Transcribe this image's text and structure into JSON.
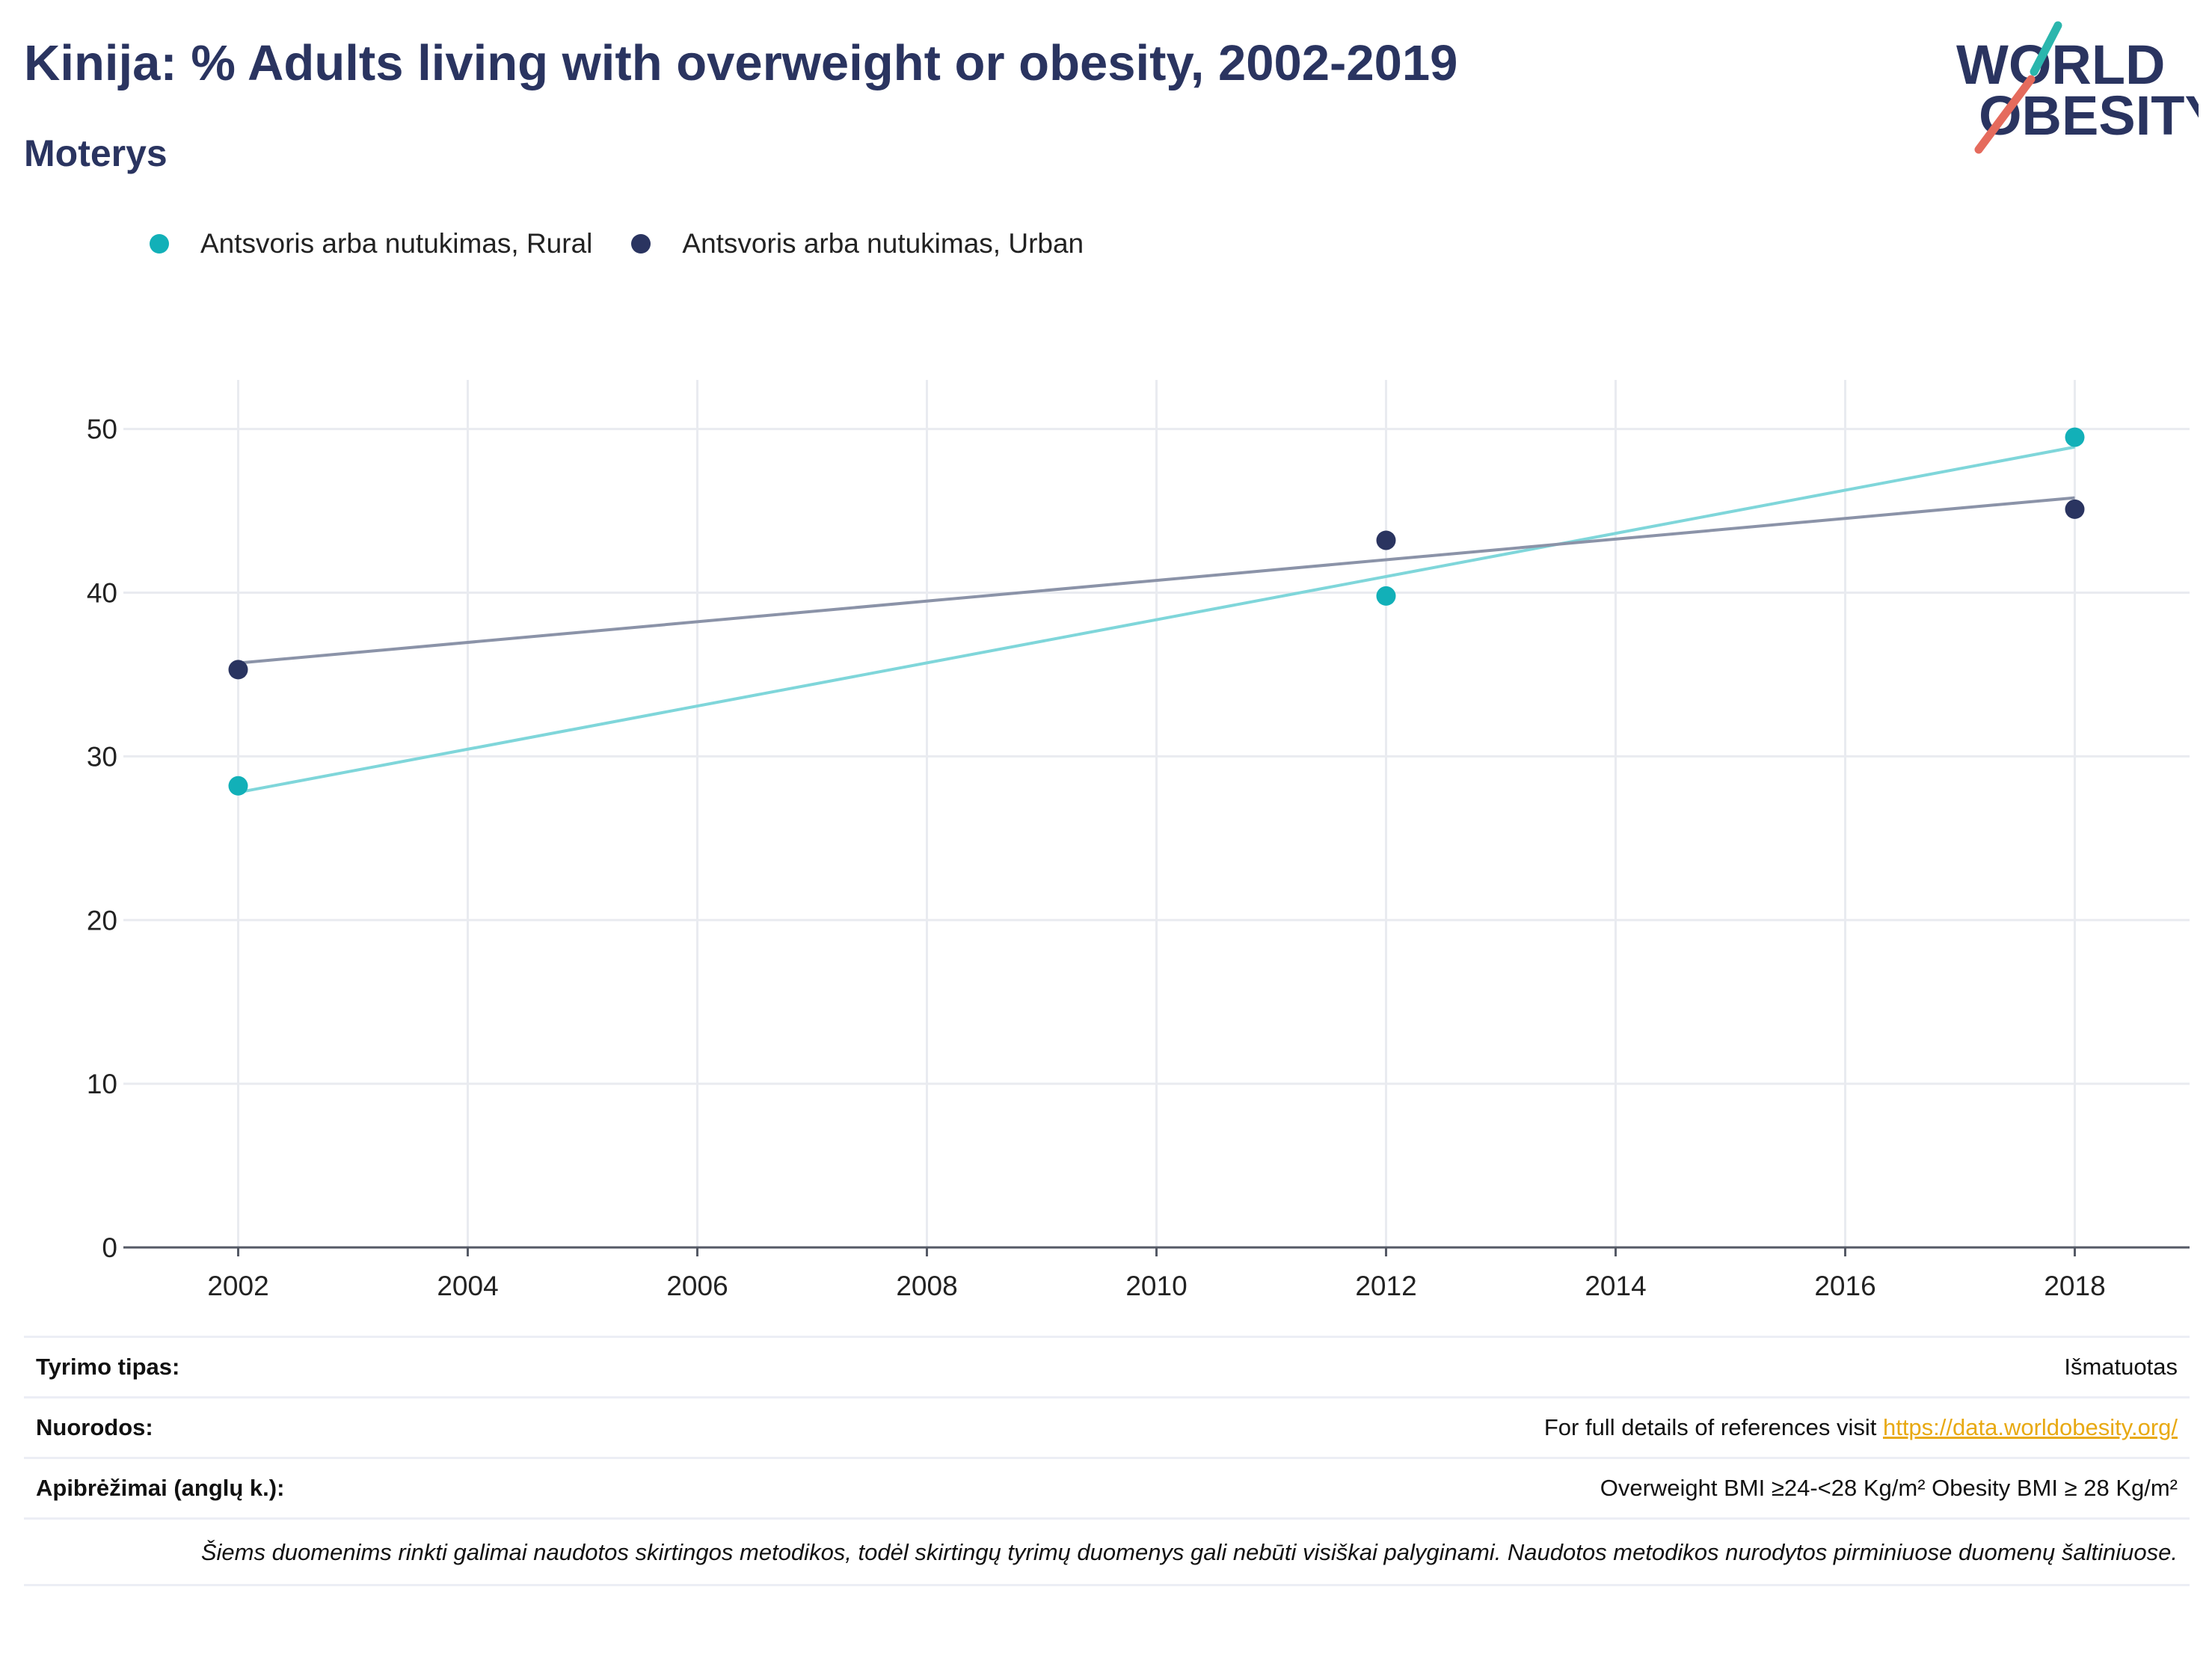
{
  "header": {
    "title": "Kinija: % Adults living with overweight or obesity, 2002-2019",
    "subtitle": "Moterys"
  },
  "logo": {
    "line1": "WORLD",
    "line2": "OBESITY",
    "colors": {
      "text": "#2a3460",
      "slash_top": "#2bb6ad",
      "slash_bottom": "#e56b5d"
    }
  },
  "legend": [
    {
      "label": "Antsvoris arba nutukimas, Rural",
      "color": "#12b0b8"
    },
    {
      "label": "Antsvoris arba nutukimas, Urban",
      "color": "#2a3460"
    }
  ],
  "chart_data": {
    "type": "scatter",
    "title": "Kinija: % Adults living with overweight or obesity, 2002-2019",
    "xlim": [
      2001,
      2019
    ],
    "ylim": [
      0,
      53
    ],
    "x_ticks": [
      2002,
      2004,
      2006,
      2008,
      2010,
      2012,
      2014,
      2016,
      2018
    ],
    "y_ticks": [
      0,
      10,
      20,
      30,
      40,
      50
    ],
    "grid": true,
    "legend_position": "top-left",
    "series": [
      {
        "name": "Antsvoris arba nutukimas, Rural",
        "color": "#12b0b8",
        "trend_color": "#7fd6da",
        "points": [
          {
            "x": 2002,
            "y": 28.2
          },
          {
            "x": 2012,
            "y": 39.8
          },
          {
            "x": 2018,
            "y": 49.5
          }
        ],
        "trendline": [
          {
            "x": 2002,
            "y": 27.8
          },
          {
            "x": 2018,
            "y": 48.9
          }
        ]
      },
      {
        "name": "Antsvoris arba nutukimas, Urban",
        "color": "#2a3460",
        "trend_color": "#8b93a8",
        "points": [
          {
            "x": 2002,
            "y": 35.3
          },
          {
            "x": 2012,
            "y": 43.2
          },
          {
            "x": 2018,
            "y": 45.1
          }
        ],
        "trendline": [
          {
            "x": 2002,
            "y": 35.7
          },
          {
            "x": 2018,
            "y": 45.8
          }
        ]
      }
    ]
  },
  "table": {
    "rows": [
      {
        "label": "Tyrimo tipas:",
        "value": "Išmatuotas"
      },
      {
        "label": "Nuorodos:",
        "value_prefix": "For full details of references visit ",
        "link": "https://data.worldobesity.org/"
      },
      {
        "label": "Apibrėžimai (anglų k.):",
        "value": "Overweight BMI ≥24-<28 Kg/m² Obesity BMI ≥ 28 Kg/m²"
      }
    ],
    "note": "Šiems duomenims rinkti galimai naudotos skirtingos metodikos, todėl skirtingų tyrimų duomenys gali nebūti visiškai palyginami. Naudotos metodikos nurodytos pirminiuose duomenų šaltiniuose."
  }
}
